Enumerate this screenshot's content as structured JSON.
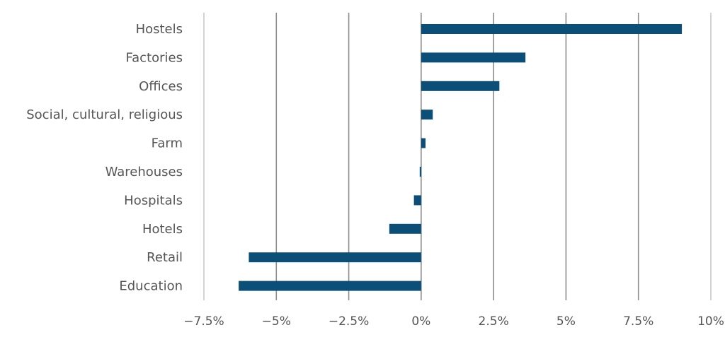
{
  "chart_data": {
    "type": "bar",
    "orientation": "horizontal",
    "categories": [
      "Hostels",
      "Factories",
      "Offices",
      "Social, cultural, religious",
      "Farm",
      "Warehouses",
      "Hospitals",
      "Hotels",
      "Retail",
      "Education"
    ],
    "values": [
      9.0,
      3.6,
      2.7,
      0.4,
      0.15,
      -0.05,
      -0.25,
      -1.1,
      -5.95,
      -6.3
    ],
    "x_ticks": [
      -7.5,
      -5,
      -2.5,
      0,
      2.5,
      5,
      7.5,
      10
    ],
    "x_tick_labels": [
      "−7.5%",
      "−5%",
      "−2.5%",
      "0%",
      "2.5%",
      "5%",
      "7.5%",
      "10%"
    ],
    "xlim": [
      -7.5,
      10
    ],
    "grid": "vertical",
    "legend": "none",
    "title": "",
    "xlabel": "",
    "ylabel": "",
    "colors": {
      "bar": "#0b4f78",
      "grid": "#8c8c8c",
      "grid_outer": "#c8c8c8",
      "text": "#555555"
    }
  }
}
